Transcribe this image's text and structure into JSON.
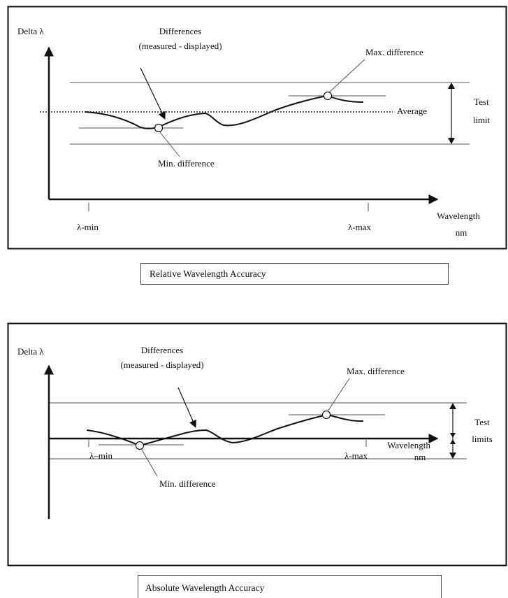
{
  "diagrams": [
    {
      "caption": "Relative Wavelength Accuracy",
      "y_axis_label": "Delta λ",
      "curve_label_line1": "Differences",
      "curve_label_line2": "(measured - displayed)",
      "max_label": "Max. difference",
      "min_label": "Min. difference",
      "average_label": "Average",
      "limit_label_line1": "Test",
      "limit_label_line2": "limit",
      "x_min_label": "λ-min",
      "x_max_label": "λ-max",
      "x_axis_label_line1": "Wavelength",
      "x_axis_label_line2": "nm"
    },
    {
      "caption": "Absolute Wavelength Accuracy",
      "y_axis_label": "Delta λ",
      "curve_label_line1": "Differences",
      "curve_label_line2": "(measured - displayed)",
      "max_label": "Max. difference",
      "min_label": "Min. difference",
      "limit_label_line1": "Test",
      "limit_label_line2": "limits",
      "x_min_label": "λ–min",
      "x_max_label": "λ-max",
      "x_axis_label_line1": "Wavelength",
      "x_axis_label_line2": "nm"
    }
  ]
}
